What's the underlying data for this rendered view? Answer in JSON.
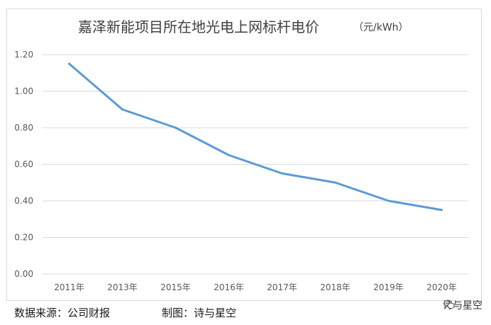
{
  "chart_data": {
    "type": "line",
    "title": "嘉泽新能项目所在地光电上网标杆电价",
    "unit": "（元/kWh）",
    "categories": [
      "2011年",
      "2013年",
      "2015年",
      "2016年",
      "2017年",
      "2018年",
      "2019年",
      "2020年"
    ],
    "values": [
      1.15,
      0.9,
      0.8,
      0.65,
      0.55,
      0.5,
      0.4,
      0.35
    ],
    "y_ticks": [
      "0.00",
      "0.20",
      "0.40",
      "0.60",
      "0.80",
      "1.00",
      "1.20"
    ],
    "ylim": [
      0,
      1.2
    ],
    "grid": true,
    "line_color": "#5b9bd5",
    "grid_color": "#d9d9d9"
  },
  "footer": {
    "source": "数据来源：公司财报",
    "maker": "制图：诗与星空"
  },
  "watermark": {
    "label": "诗与星空",
    "icon": "wechat-icon"
  }
}
